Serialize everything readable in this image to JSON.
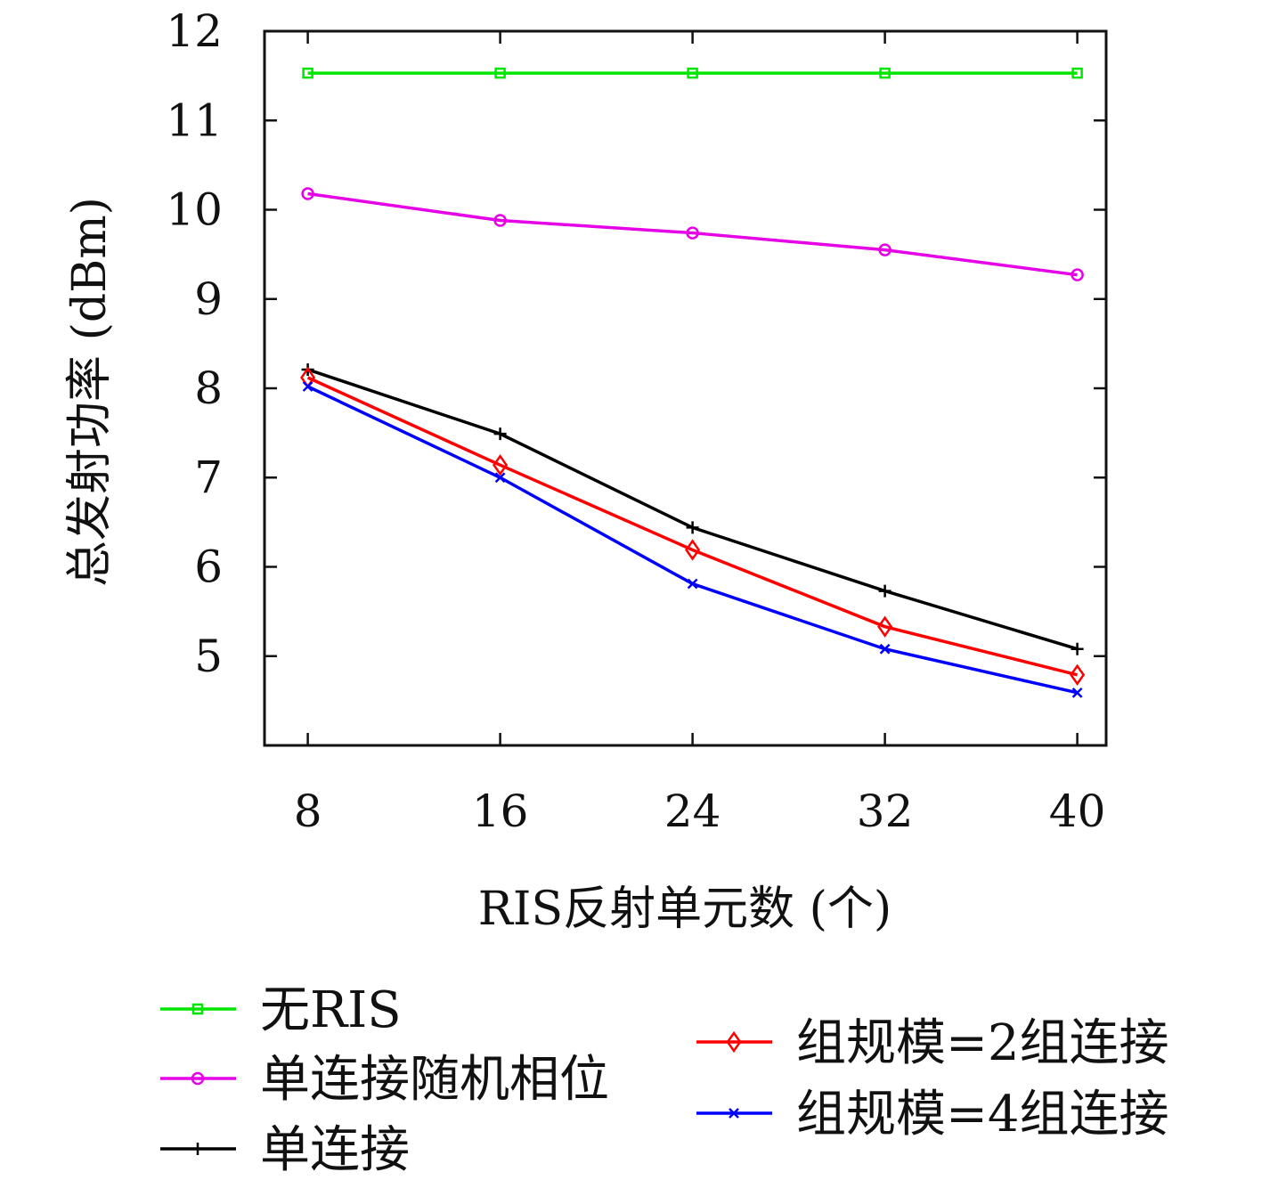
{
  "chart_data": {
    "type": "line",
    "xlabel": "RIS反射单元数 (个)",
    "ylabel": "总发射功率 (dBm)",
    "x": [
      8,
      16,
      24,
      32,
      40
    ],
    "x_ticks": [
      "8",
      "16",
      "24",
      "32",
      "40"
    ],
    "y_ticks": [
      "5",
      "6",
      "7",
      "8",
      "9",
      "10",
      "11",
      "12"
    ],
    "xlim": [
      6.2,
      41.2
    ],
    "ylim": [
      4.0,
      12.0
    ],
    "grid": false,
    "legend_position": "bottom",
    "series": [
      {
        "name": "无RIS",
        "color": "#00e600",
        "marker": "square",
        "values": [
          11.53,
          11.53,
          11.53,
          11.53,
          11.53
        ]
      },
      {
        "name": "单连接随机相位",
        "color": "#e600e6",
        "marker": "circle",
        "values": [
          10.18,
          9.88,
          9.74,
          9.55,
          9.27
        ]
      },
      {
        "name": "单连接",
        "color": "#000000",
        "marker": "plus",
        "values": [
          8.21,
          7.49,
          6.44,
          5.73,
          5.08
        ]
      },
      {
        "name": "组规模=2组连接",
        "color": "#ff0000",
        "marker": "diamond",
        "values": [
          8.12,
          7.14,
          6.19,
          5.33,
          4.79
        ]
      },
      {
        "name": "组规模=4组连接",
        "color": "#0000ff",
        "marker": "cross",
        "values": [
          8.02,
          7.0,
          5.81,
          5.08,
          4.59
        ]
      }
    ]
  }
}
